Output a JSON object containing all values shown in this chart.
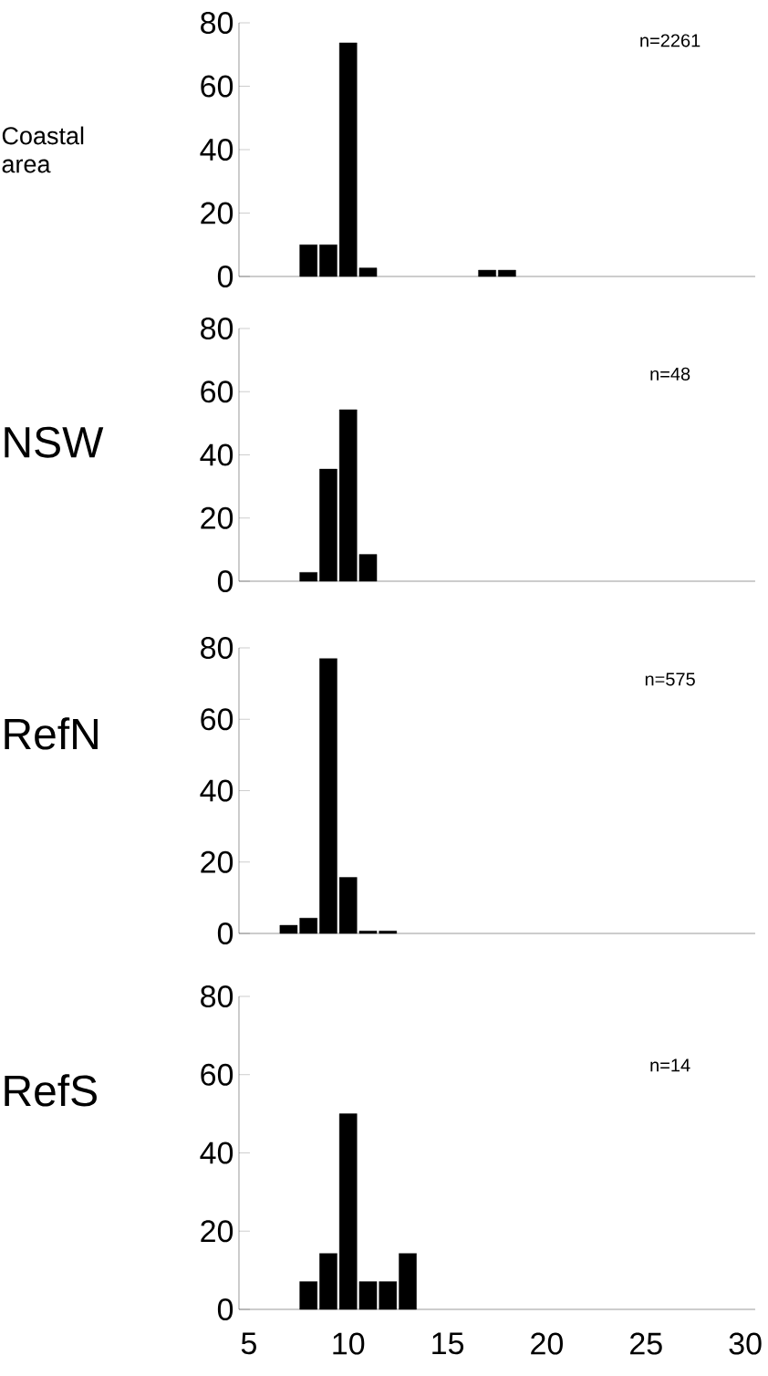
{
  "chart_data": [
    {
      "type": "bar",
      "ylabel": "Coastal area",
      "categories": [
        "5",
        null,
        null,
        null,
        null,
        "10",
        null,
        null,
        null,
        null,
        "15",
        null,
        null,
        null,
        null,
        "20",
        null,
        null,
        null,
        null,
        "25",
        null,
        null,
        null,
        null,
        "30"
      ],
      "values": [
        null,
        null,
        null,
        10,
        10,
        73.7,
        2.7,
        null,
        null,
        null,
        null,
        null,
        2,
        2,
        null,
        null,
        null,
        null,
        null,
        null,
        null,
        null,
        null,
        null,
        null,
        null
      ],
      "color": "#000000",
      "ylim": [
        0,
        80
      ],
      "yticks": [
        0,
        20,
        40,
        60,
        80
      ],
      "annotations": [
        "n=2261"
      ],
      "tick_labels": "y"
    },
    {
      "type": "bar",
      "ylabel": "NSW",
      "categories": [
        "5",
        null,
        null,
        null,
        null,
        "10",
        null,
        null,
        null,
        null,
        "15",
        null,
        null,
        null,
        null,
        "20",
        null,
        null,
        null,
        null,
        "25",
        null,
        null,
        null,
        null,
        "30"
      ],
      "values": [
        null,
        null,
        null,
        2.8,
        35.5,
        54.3,
        8.5,
        null,
        null,
        null,
        null,
        null,
        null,
        null,
        null,
        null,
        null,
        null,
        null,
        null,
        null,
        null,
        null,
        null,
        null,
        null
      ],
      "color": "#000000",
      "ylim": [
        0,
        80
      ],
      "yticks": [
        0,
        20,
        40,
        60,
        80
      ],
      "annotations": [
        "n=48"
      ],
      "tick_labels": "y"
    },
    {
      "type": "bar",
      "ylabel": "RefN",
      "categories": [
        "5",
        null,
        null,
        null,
        null,
        "10",
        null,
        null,
        null,
        null,
        "15",
        null,
        null,
        null,
        null,
        "20",
        null,
        null,
        null,
        null,
        "25",
        null,
        null,
        null,
        null,
        "30"
      ],
      "values": [
        null,
        null,
        2.3,
        4.3,
        77,
        15.7,
        0.7,
        0.7,
        null,
        null,
        null,
        null,
        null,
        null,
        null,
        null,
        null,
        null,
        null,
        null,
        null,
        null,
        null,
        null,
        null,
        null
      ],
      "color": "#000000",
      "ylim": [
        0,
        80
      ],
      "yticks": [
        0,
        20,
        40,
        60,
        80
      ],
      "annotations": [
        "n=575"
      ],
      "tick_labels": "y"
    },
    {
      "type": "bar",
      "ylabel": "RefS",
      "categories": [
        "5",
        null,
        null,
        null,
        null,
        "10",
        null,
        null,
        null,
        null,
        "15",
        null,
        null,
        null,
        null,
        "20",
        null,
        null,
        null,
        null,
        "25",
        null,
        null,
        null,
        null,
        "30"
      ],
      "values": [
        null,
        null,
        null,
        7.1,
        14.3,
        50,
        7.1,
        7.1,
        14.3,
        null,
        null,
        null,
        null,
        null,
        null,
        null,
        null,
        null,
        null,
        null,
        null,
        null,
        null,
        null,
        null,
        null
      ],
      "color": "#000000",
      "ylim": [
        0,
        80
      ],
      "yticks": [
        0,
        20,
        40,
        60,
        80
      ],
      "annotations": [
        "n=14"
      ]
    }
  ]
}
